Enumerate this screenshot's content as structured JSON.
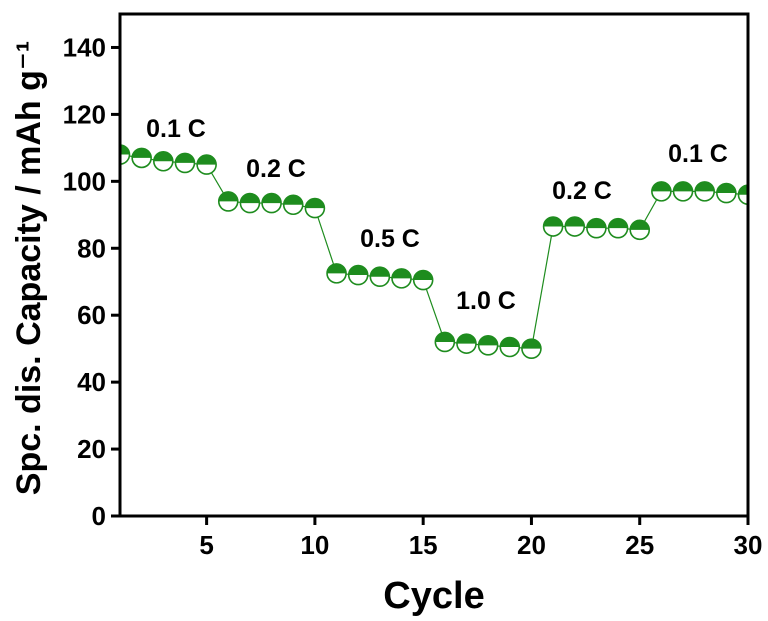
{
  "chart_data": {
    "type": "line",
    "xlabel": "Cycle",
    "ylabel": "Spc. dis. Capacity / mAh g⁻¹",
    "x": [
      1,
      2,
      3,
      4,
      5,
      6,
      7,
      8,
      9,
      10,
      11,
      12,
      13,
      14,
      15,
      16,
      17,
      18,
      19,
      20,
      21,
      22,
      23,
      24,
      25,
      26,
      27,
      28,
      29,
      30
    ],
    "series": [
      {
        "color": "#1e8c1e",
        "values": [
          108,
          107,
          106,
          105.5,
          105,
          94,
          93.5,
          93.5,
          93,
          92,
          72.5,
          72,
          71.5,
          71,
          70.5,
          52,
          51.5,
          51,
          50.5,
          50,
          86.5,
          86.5,
          86,
          86,
          85.5,
          97,
          97,
          97,
          96.5,
          96
        ]
      }
    ],
    "annotations": [
      "0.1 C",
      "0.2 C",
      "0.5 C",
      "1.0 C",
      "0.2 C",
      "0.1 C"
    ],
    "xlim": [
      1,
      30
    ],
    "xticks": [
      5,
      10,
      15,
      20,
      25,
      30
    ],
    "ylim": [
      0,
      150
    ],
    "yticks": [
      0,
      20,
      40,
      60,
      80,
      100,
      120,
      140
    ]
  }
}
